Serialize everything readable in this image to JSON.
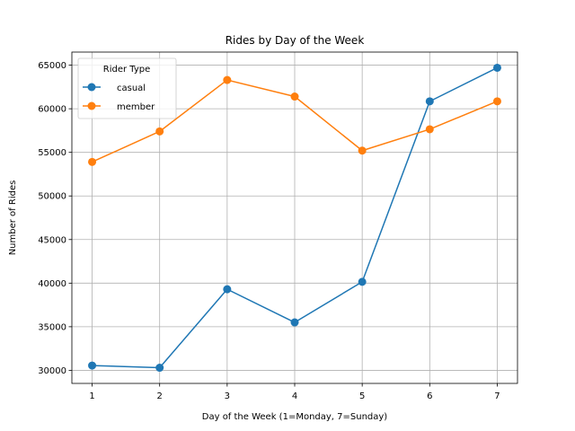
{
  "chart_data": {
    "type": "line",
    "title": "Rides by Day of the Week",
    "xlabel": "Day of the Week (1=Monday, 7=Sunday)",
    "ylabel": "Number of Rides",
    "x": [
      1,
      2,
      3,
      4,
      5,
      6,
      7
    ],
    "xlim": [
      0.7,
      7.3
    ],
    "ylim": [
      28500,
      66500
    ],
    "yticks": [
      30000,
      35000,
      40000,
      45000,
      50000,
      55000,
      60000,
      65000
    ],
    "grid": true,
    "legend": {
      "title": "Rider Type",
      "placement": "upper-left"
    },
    "series": [
      {
        "name": "casual",
        "color": "#1f77b4",
        "marker": "circle",
        "values": [
          30550,
          30300,
          39300,
          35500,
          40150,
          60850,
          64700
        ]
      },
      {
        "name": "member",
        "color": "#ff7f0e",
        "marker": "circle",
        "values": [
          53900,
          57400,
          63300,
          61400,
          55200,
          57650,
          60850
        ]
      }
    ]
  }
}
